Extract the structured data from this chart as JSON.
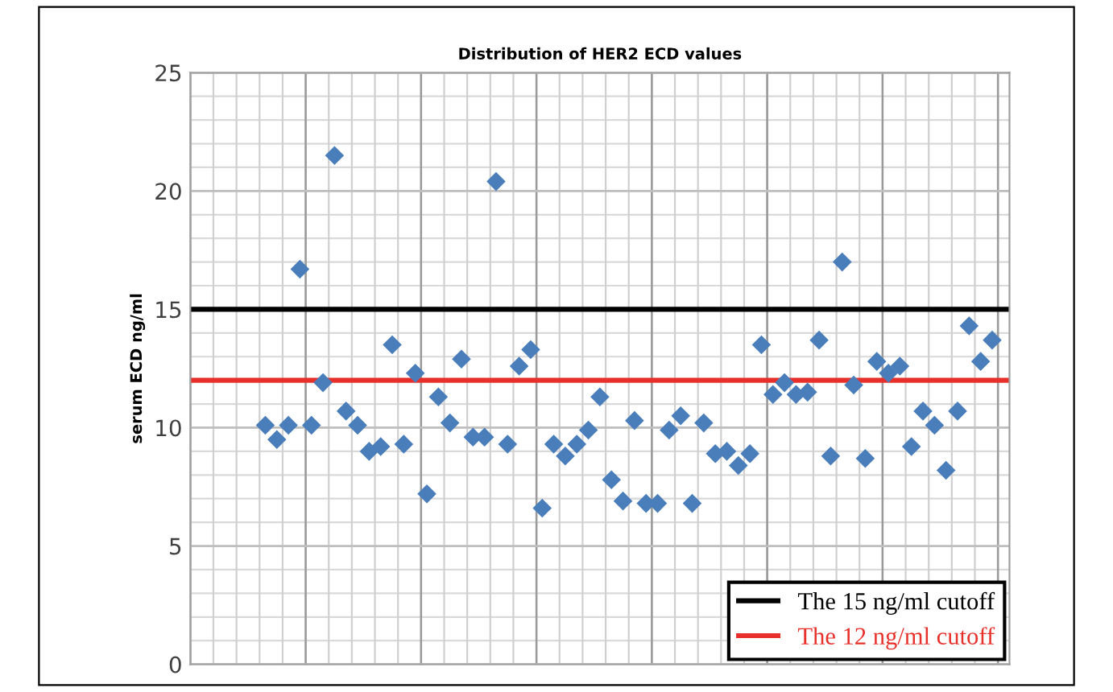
{
  "chart_data": {
    "type": "scatter",
    "title": "Distribution of HER2 ECD values",
    "ylabel": "serum ECD ng/ml",
    "categories": [
      null,
      null,
      null,
      null,
      null,
      null,
      null,
      null,
      null,
      null,
      null,
      null,
      null,
      null,
      null,
      null,
      null,
      null,
      null,
      null,
      null,
      null,
      null,
      null,
      null,
      null,
      null,
      null,
      null,
      null,
      null,
      null,
      null,
      null,
      null,
      null,
      null,
      null,
      null,
      null,
      null,
      null,
      null,
      null,
      null,
      null,
      null,
      null,
      null,
      null,
      null,
      null,
      null,
      null,
      null,
      null,
      null,
      null,
      null,
      null,
      null,
      null,
      null,
      null,
      null,
      null,
      null,
      null,
      null,
      null,
      null
    ],
    "series": [
      {
        "color": "#4a7ebb",
        "values": [
          null,
          null,
          null,
          null,
          null,
          null,
          10.1,
          9.5,
          10.1,
          16.7,
          10.1,
          11.9,
          21.5,
          10.7,
          10.1,
          9.0,
          9.2,
          13.5,
          9.3,
          12.3,
          7.2,
          11.3,
          10.2,
          12.9,
          9.6,
          9.6,
          20.4,
          9.3,
          12.6,
          13.3,
          6.6,
          9.3,
          8.8,
          9.3,
          9.9,
          11.3,
          7.8,
          6.9,
          10.3,
          6.8,
          6.8,
          9.9,
          10.5,
          6.8,
          10.2,
          8.9,
          9.0,
          8.4,
          8.9,
          13.5,
          11.4,
          11.9,
          11.4,
          11.5,
          13.7,
          8.8,
          17.0,
          11.8,
          8.7,
          12.8,
          12.3,
          12.6,
          9.2,
          10.7,
          10.1,
          8.2,
          10.7,
          14.3,
          12.8,
          13.7,
          null
        ]
      }
    ],
    "marker": "diamond",
    "ylim": [
      0,
      25
    ],
    "yticks": [
      0,
      5,
      10,
      15,
      20,
      25
    ],
    "grid": true,
    "ref_lines": [
      {
        "axis": "y",
        "value": 15,
        "label": "The 15 ng/ml cutoff",
        "color": "#000000"
      },
      {
        "axis": "y",
        "value": 12,
        "label": "The 12 ng/ml cutoff",
        "color": "#e8302a"
      }
    ],
    "legend": "bottom right"
  }
}
